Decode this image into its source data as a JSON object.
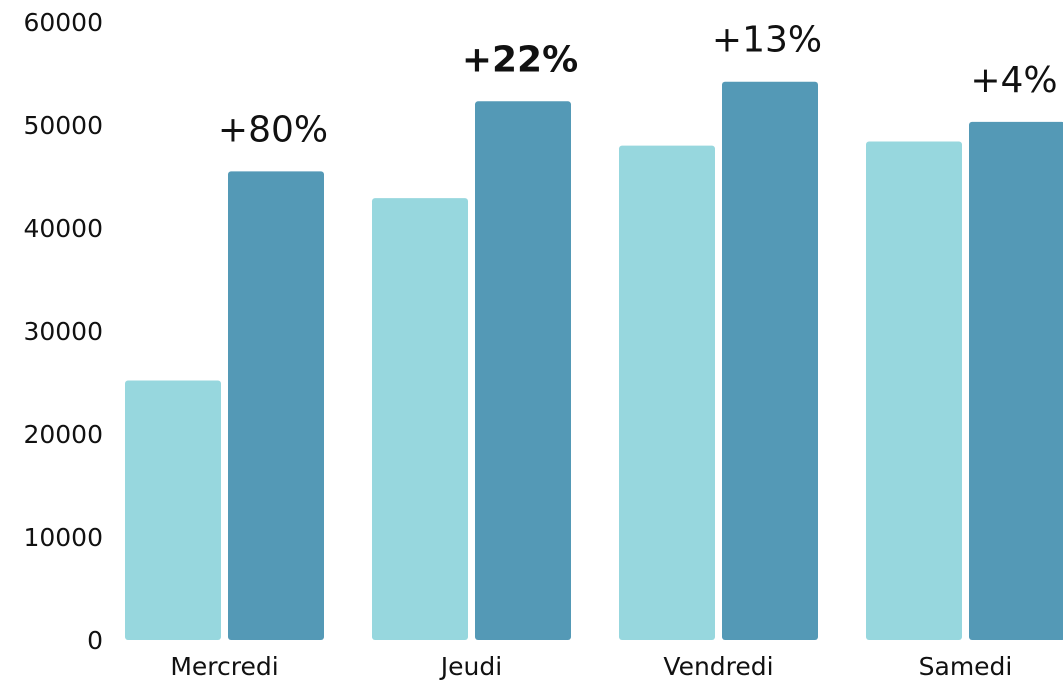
{
  "chart_data": {
    "type": "bar",
    "categories": [
      "Mercredi",
      "Jeudi",
      "Vendredi",
      "Samedi"
    ],
    "series": [
      {
        "color": "#97d7de",
        "values": [
          25200,
          42900,
          48000,
          48400
        ]
      },
      {
        "color": "#5499b6",
        "values": [
          45500,
          52300,
          54200,
          50300
        ]
      }
    ],
    "annotations": [
      {
        "text": "+80%",
        "bold": false
      },
      {
        "text": "+22%",
        "bold": true
      },
      {
        "text": "+13%",
        "bold": false
      },
      {
        "text": "+4%",
        "bold": false
      }
    ],
    "ylim": [
      0,
      60000
    ],
    "yticks": [
      0,
      10000,
      20000,
      30000,
      40000,
      50000,
      60000
    ],
    "grid": false
  }
}
